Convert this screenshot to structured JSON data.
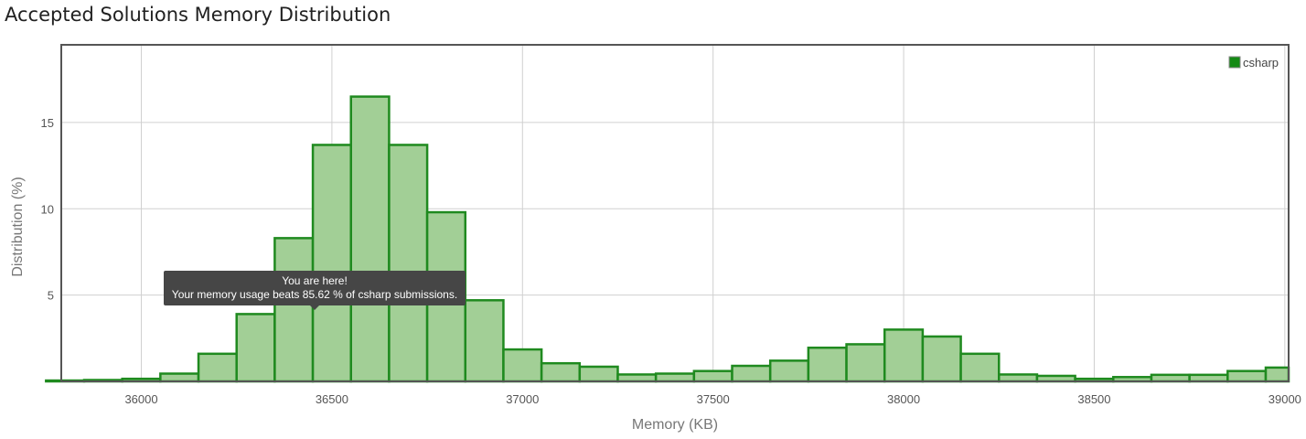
{
  "title": "Accepted Solutions Memory Distribution",
  "chart_data": {
    "type": "bar",
    "xlabel": "Memory (KB)",
    "ylabel": "Distribution (%)",
    "xlim": [
      35790,
      39010
    ],
    "ylim": [
      0,
      19.5
    ],
    "bin_width": 100,
    "x_ticks": [
      36000,
      36500,
      37000,
      37500,
      38000,
      38500,
      39000
    ],
    "y_ticks": [
      5,
      10,
      15
    ],
    "grid": true,
    "legend": {
      "position": "top-right",
      "entries": [
        "csharp"
      ]
    },
    "colors": {
      "bar_fill": "#a2cf96",
      "bar_stroke": "#1f8a1f",
      "legend_swatch": "#158a15"
    },
    "bins": [
      {
        "x": 35800,
        "y": 0.05
      },
      {
        "x": 35900,
        "y": 0.08
      },
      {
        "x": 36000,
        "y": 0.15
      },
      {
        "x": 36100,
        "y": 0.45
      },
      {
        "x": 36200,
        "y": 1.6
      },
      {
        "x": 36300,
        "y": 3.9
      },
      {
        "x": 36400,
        "y": 8.3
      },
      {
        "x": 36500,
        "y": 13.7
      },
      {
        "x": 36600,
        "y": 16.5
      },
      {
        "x": 36700,
        "y": 13.7
      },
      {
        "x": 36800,
        "y": 9.8
      },
      {
        "x": 36900,
        "y": 4.7
      },
      {
        "x": 37000,
        "y": 1.85
      },
      {
        "x": 37100,
        "y": 1.05
      },
      {
        "x": 37200,
        "y": 0.85
      },
      {
        "x": 37300,
        "y": 0.4
      },
      {
        "x": 37400,
        "y": 0.45
      },
      {
        "x": 37500,
        "y": 0.6
      },
      {
        "x": 37600,
        "y": 0.9
      },
      {
        "x": 37700,
        "y": 1.2
      },
      {
        "x": 37800,
        "y": 1.95
      },
      {
        "x": 37900,
        "y": 2.15
      },
      {
        "x": 38000,
        "y": 3.0
      },
      {
        "x": 38100,
        "y": 2.6
      },
      {
        "x": 38200,
        "y": 1.6
      },
      {
        "x": 38300,
        "y": 0.4
      },
      {
        "x": 38400,
        "y": 0.32
      },
      {
        "x": 38500,
        "y": 0.15
      },
      {
        "x": 38600,
        "y": 0.25
      },
      {
        "x": 38700,
        "y": 0.38
      },
      {
        "x": 38800,
        "y": 0.38
      },
      {
        "x": 38900,
        "y": 0.6
      },
      {
        "x": 39000,
        "y": 0.8
      }
    ],
    "annotation": {
      "line1": "You are here!",
      "line2": "Your memory usage beats 85.62 % of csharp submissions."
    }
  }
}
